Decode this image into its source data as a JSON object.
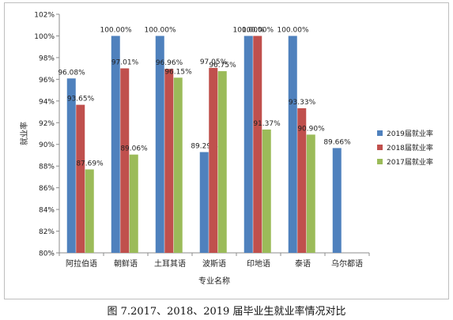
{
  "caption": "图 7.2017、2018、2019 届毕业生就业率情况对比",
  "chart_data": {
    "type": "bar",
    "xlabel": "专业名称",
    "ylabel": "就业率",
    "ylim": [
      80,
      102
    ],
    "yticks": [
      "80%",
      "82%",
      "84%",
      "86%",
      "88%",
      "90%",
      "92%",
      "94%",
      "96%",
      "98%",
      "100%",
      "102%"
    ],
    "grid": false,
    "legend_position": "right",
    "categories": [
      "阿拉伯语",
      "朝鲜语",
      "土耳其语",
      "波斯语",
      "印地语",
      "泰语",
      "乌尔都语"
    ],
    "series": [
      {
        "name": "2019届就业率",
        "color": "#4f81bd",
        "values": [
          96.08,
          100.0,
          100.0,
          89.29,
          100.0,
          100.0,
          89.66
        ],
        "labels": [
          "96.08%",
          "100.00%",
          "100.00%",
          "89.29%",
          "100.00%",
          "100.00%",
          "89.66%"
        ]
      },
      {
        "name": "2018届就业率",
        "color": "#c0504d",
        "values": [
          93.65,
          97.01,
          96.96,
          97.05,
          100.0,
          93.33,
          null
        ],
        "labels": [
          "93.65%",
          "97.01%",
          "96.96%",
          "97.05%",
          "100.00%",
          "93.33%",
          null
        ]
      },
      {
        "name": "2017届就业率",
        "color": "#9bbb59",
        "values": [
          87.69,
          89.06,
          96.15,
          96.75,
          91.37,
          90.9,
          null
        ],
        "labels": [
          "87.69%",
          "89.06%",
          "96.15%",
          "96.75%",
          "91.37%",
          "90.90%",
          null
        ]
      }
    ]
  }
}
